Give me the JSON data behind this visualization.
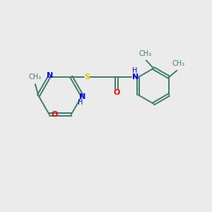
{
  "background_color": "#ebebeb",
  "bond_color": "#3d7e6e",
  "n_color": "#0000ff",
  "o_color": "#ff0000",
  "s_color": "#cccc00",
  "font_size": 8,
  "lw": 1.4,
  "doff": 0.06,
  "xlim": [
    0,
    10
  ],
  "ylim": [
    1,
    9
  ]
}
